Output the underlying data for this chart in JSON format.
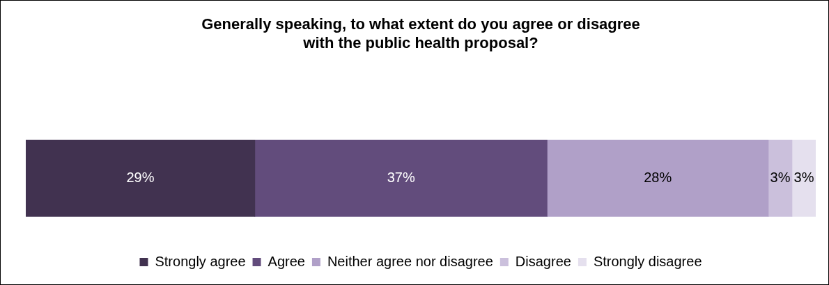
{
  "chart_data": {
    "type": "bar",
    "orientation": "horizontal",
    "stacked": true,
    "title": "Generally speaking, to what extent do you agree or disagree with the public health proposal?",
    "categories": [
      null
    ],
    "series": [
      {
        "name": "Strongly agree",
        "color": "#413250",
        "values": [
          29
        ],
        "value_labels": [
          "29%"
        ]
      },
      {
        "name": "Agree",
        "color": "#624c7c",
        "values": [
          37
        ],
        "value_labels": [
          "37%"
        ]
      },
      {
        "name": "Neither agree nor disagree",
        "color": "#b0a0c8",
        "values": [
          28
        ],
        "value_labels": [
          "28%"
        ]
      },
      {
        "name": "Disagree",
        "color": "#cbc0dc",
        "values": [
          3
        ],
        "value_labels": [
          "3%"
        ]
      },
      {
        "name": "Strongly disagree",
        "color": "#e5e0ee",
        "values": [
          3
        ],
        "value_labels": [
          "3%"
        ]
      }
    ],
    "legend": "bottom"
  }
}
